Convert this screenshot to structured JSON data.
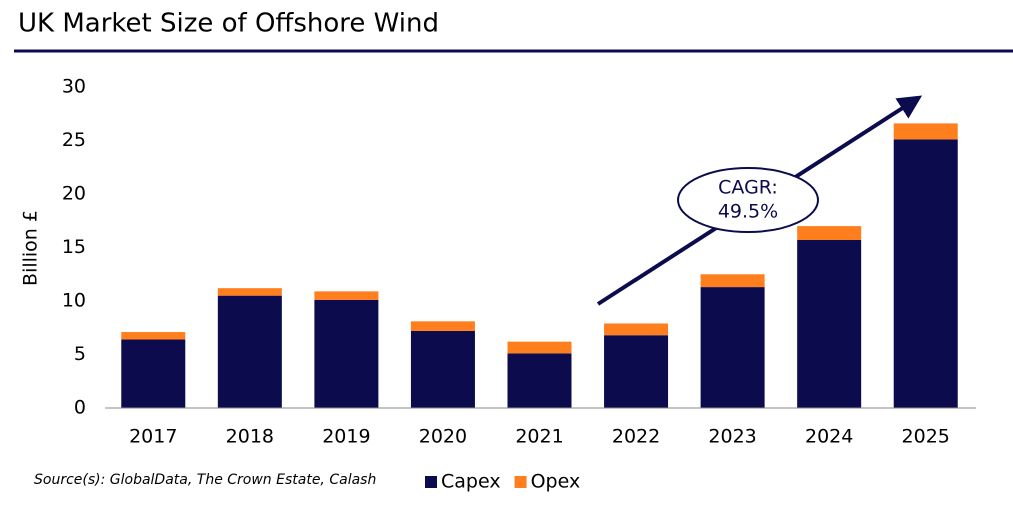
{
  "chart_data": {
    "type": "stacked-bar",
    "title": "UK Market Size of Offshore Wind",
    "y_label": "Billion £",
    "categories": [
      "2017",
      "2018",
      "2019",
      "2020",
      "2021",
      "2022",
      "2023",
      "2024",
      "2025"
    ],
    "series": [
      {
        "name": "Capex",
        "color": "#0b0b4d",
        "values": [
          6.4,
          10.5,
          10.1,
          7.2,
          5.1,
          6.8,
          11.3,
          15.7,
          25.1
        ]
      },
      {
        "name": "Opex",
        "color": "#ff7f1e",
        "values": [
          0.7,
          0.7,
          0.8,
          0.9,
          1.1,
          1.1,
          1.2,
          1.3,
          1.5
        ]
      }
    ],
    "ylim": [
      0,
      30
    ],
    "yticks": [
      0,
      5,
      10,
      15,
      20,
      25,
      30
    ],
    "annotation": [
      "CAGR:",
      "49.5%"
    ],
    "source": "Source(s): GlobalData, The Crown Estate, Calash"
  }
}
